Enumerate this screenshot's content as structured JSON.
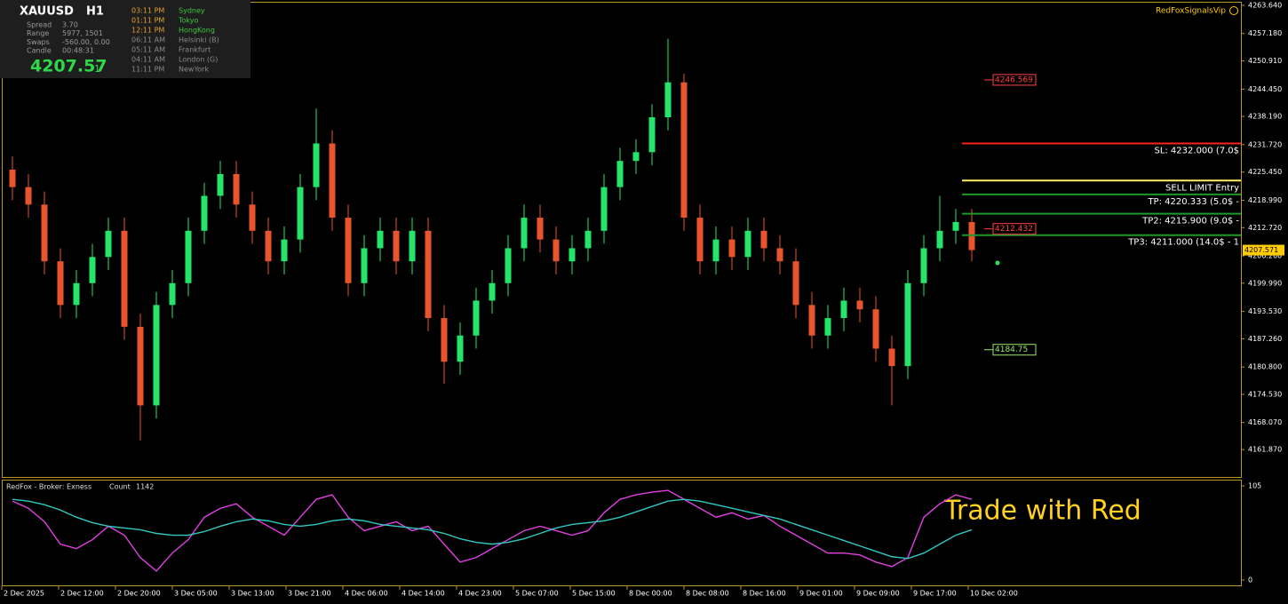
{
  "info_panel": {
    "symbol": "XAUUSD",
    "timeframe": "H1",
    "rows": [
      [
        "Spread",
        "3.70"
      ],
      [
        "Range",
        "5977, 1501"
      ],
      [
        "Swaps",
        "-560.00, 0.00"
      ],
      [
        "Candle",
        "00:48:31"
      ]
    ],
    "price": "4207.57",
    "price_digit": "1",
    "sessions": [
      [
        "03:11 PM",
        "Sydney"
      ],
      [
        "01:11 PM",
        "Tokyo"
      ],
      [
        "12:11 PM",
        "HongKong"
      ],
      [
        "06:11 AM",
        "Helsinki  (B)"
      ],
      [
        "05:11 AM",
        "Frankfurt"
      ],
      [
        "04:11 AM",
        "London  (G)"
      ],
      [
        "11:11 PM",
        "NewYork"
      ]
    ]
  },
  "brand": "RedFoxSignalsVip",
  "watermark": "Trade with Red",
  "chart_data": {
    "type": "candlestick",
    "xlabels": [
      "2 Dec 2025",
      "2 Dec 12:00",
      "2 Dec 20:00",
      "3 Dec 05:00",
      "3 Dec 13:00",
      "3 Dec 21:00",
      "4 Dec 06:00",
      "4 Dec 14:00",
      "4 Dec 23:00",
      "5 Dec 07:00",
      "5 Dec 15:00",
      "8 Dec 00:00",
      "8 Dec 08:00",
      "8 Dec 16:00",
      "9 Dec 01:00",
      "9 Dec 09:00",
      "9 Dec 17:00",
      "10 Dec 02:00"
    ],
    "open": [
      4226,
      4222,
      4218,
      4205,
      4195,
      4200,
      4206,
      4212,
      4190,
      4172,
      4195,
      4200,
      4212,
      4220,
      4225,
      4218,
      4212,
      4205,
      4210,
      4222,
      4232,
      4215,
      4200,
      4208,
      4212,
      4205,
      4212,
      4192,
      4182,
      4188,
      4196,
      4200,
      4208,
      4215,
      4210,
      4205,
      4208,
      4212,
      4222,
      4228,
      4230,
      4238,
      4246,
      4215,
      4205,
      4210,
      4206,
      4212,
      4208,
      4205,
      4195,
      4188,
      4192,
      4196,
      4194,
      4185,
      4181,
      4200,
      4208,
      4212,
      4214
    ],
    "high": [
      4229,
      4225,
      4221,
      4208,
      4203,
      4209,
      4215,
      4215,
      4193,
      4198,
      4203,
      4215,
      4223,
      4228,
      4228,
      4221,
      4215,
      4213,
      4225,
      4240,
      4235,
      4218,
      4211,
      4215,
      4215,
      4215,
      4215,
      4195,
      4191,
      4199,
      4203,
      4211,
      4218,
      4218,
      4213,
      4211,
      4215,
      4225,
      4231,
      4233,
      4241,
      4256,
      4248,
      4218,
      4213,
      4213,
      4215,
      4215,
      4211,
      4208,
      4198,
      4195,
      4199,
      4199,
      4197,
      4188,
      4203,
      4211,
      4220,
      4217,
      4217
    ],
    "low": [
      4219,
      4215,
      4202,
      4192,
      4192,
      4197,
      4203,
      4187,
      4164,
      4169,
      4192,
      4197,
      4209,
      4217,
      4215,
      4209,
      4202,
      4202,
      4207,
      4219,
      4212,
      4197,
      4197,
      4205,
      4202,
      4202,
      4189,
      4177,
      4179,
      4185,
      4193,
      4197,
      4205,
      4207,
      4202,
      4202,
      4205,
      4209,
      4219,
      4225,
      4227,
      4235,
      4212,
      4202,
      4202,
      4203,
      4203,
      4205,
      4202,
      4192,
      4185,
      4185,
      4189,
      4191,
      4182,
      4172,
      4178,
      4197,
      4205,
      4209,
      4205
    ],
    "close": [
      4222,
      4218,
      4205,
      4195,
      4200,
      4206,
      4212,
      4190,
      4172,
      4195,
      4200,
      4212,
      4220,
      4225,
      4218,
      4212,
      4205,
      4210,
      4222,
      4232,
      4215,
      4200,
      4208,
      4212,
      4205,
      4212,
      4192,
      4182,
      4188,
      4196,
      4200,
      4208,
      4215,
      4210,
      4205,
      4208,
      4212,
      4222,
      4228,
      4230,
      4238,
      4246,
      4215,
      4205,
      4210,
      4206,
      4212,
      4208,
      4205,
      4195,
      4188,
      4192,
      4196,
      4194,
      4185,
      4181,
      4200,
      4208,
      4212,
      4214,
      4207.57
    ],
    "up_color": "#26e36a",
    "down_color": "#e8542c",
    "ylim": [
      4155.6,
      4264.86
    ],
    "yticks": [
      {
        "value": 4263.64,
        "label": "4263.640"
      },
      {
        "value": 4257.18,
        "label": "4257.180"
      },
      {
        "value": 4250.91,
        "label": "4250.910"
      },
      {
        "value": 4244.45,
        "label": "4244.450"
      },
      {
        "value": 4238.19,
        "label": "4238.190"
      },
      {
        "value": 4231.72,
        "label": "4231.720"
      },
      {
        "value": 4225.45,
        "label": "4225.450"
      },
      {
        "value": 4218.99,
        "label": "4218.990"
      },
      {
        "value": 4212.72,
        "label": "4212.720"
      },
      {
        "value": 4206.26,
        "label": "4206.260"
      },
      {
        "value": 4199.99,
        "label": "4199.990"
      },
      {
        "value": 4193.53,
        "label": "4193.530"
      },
      {
        "value": 4187.26,
        "label": "4187.260"
      },
      {
        "value": 4180.8,
        "label": "4180.800"
      },
      {
        "value": 4174.53,
        "label": "4174.530"
      },
      {
        "value": 4168.07,
        "label": "4168.070"
      },
      {
        "value": 4161.87,
        "label": "4161.870"
      }
    ],
    "levels": [
      {
        "label": "SL: 4232.000 (7.0$",
        "value": 4232,
        "color": "#ff2020"
      },
      {
        "label": "SELL LIMIT Entry",
        "value": 4223.5,
        "color": "#ffee66"
      },
      {
        "label": "TP: 4220.333 (5.0$ -",
        "value": 4220.333,
        "color": "#1a9a2a"
      },
      {
        "label": "TP2: 4215.900 (9.0$ -",
        "value": 4215.9,
        "color": "#1a9a2a"
      },
      {
        "label": "TP3: 4211.000 (14.0$ - 1",
        "value": 4211,
        "color": "#1a9a2a"
      }
    ],
    "price_boxes": [
      {
        "value": 4246.569,
        "color": "#ff4040"
      },
      {
        "value": 4212.432,
        "color": "#ff4040"
      },
      {
        "value": 4184.75,
        "color": "#9ae86a"
      }
    ],
    "current_price": 4207.571
  },
  "indicator": {
    "title": "RedFox -  Broker: Exness",
    "count_label": "Count",
    "count": 1142,
    "ylim": [
      0,
      105
    ],
    "yticks": [
      105,
      0
    ],
    "series": [
      {
        "color": "#e040e0",
        "values": [
          88,
          80,
          65,
          40,
          35,
          45,
          60,
          50,
          25,
          10,
          30,
          45,
          70,
          80,
          85,
          70,
          60,
          50,
          70,
          90,
          95,
          70,
          55,
          60,
          65,
          55,
          60,
          40,
          20,
          25,
          35,
          45,
          55,
          60,
          55,
          50,
          55,
          75,
          90,
          95,
          98,
          100,
          90,
          80,
          70,
          75,
          68,
          72,
          60,
          50,
          40,
          30,
          30,
          28,
          20,
          15,
          25,
          70,
          85,
          95,
          90
        ]
      },
      {
        "color": "#30c8c0",
        "values": [
          90,
          88,
          84,
          78,
          70,
          64,
          60,
          58,
          56,
          52,
          50,
          50,
          54,
          60,
          65,
          68,
          66,
          62,
          60,
          62,
          66,
          68,
          66,
          62,
          60,
          58,
          56,
          52,
          46,
          42,
          40,
          42,
          46,
          52,
          58,
          62,
          64,
          66,
          70,
          76,
          82,
          88,
          90,
          88,
          84,
          80,
          76,
          72,
          68,
          62,
          56,
          50,
          44,
          38,
          32,
          26,
          24,
          30,
          40,
          50,
          56
        ]
      }
    ]
  }
}
